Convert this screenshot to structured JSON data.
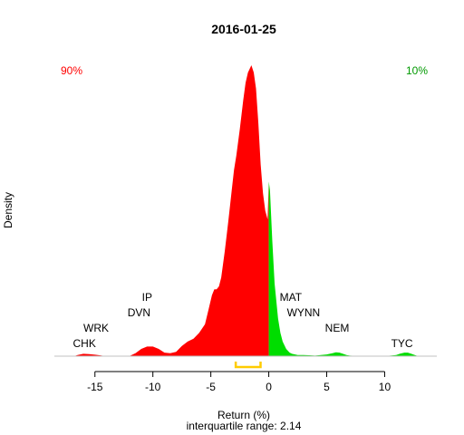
{
  "chart_data": {
    "type": "area",
    "title": "2016-01-25",
    "xlabel": "Return (%)",
    "ylabel": "Density",
    "subtitle": "interquartile range: 2.14",
    "xlim": [
      -18.5,
      14.5
    ],
    "ylim": [
      0,
      1
    ],
    "xticks": [
      -15,
      -10,
      -5,
      0,
      5,
      10
    ],
    "split_at": 0,
    "negative_share": "90%",
    "positive_share": "10%",
    "colors": {
      "negative": "#ff0000",
      "positive": "#00dd00",
      "iqr": "#ffcc00",
      "negative_text": "#ff0000",
      "positive_text": "#009900",
      "baseline": "#c0c0c0"
    },
    "density": {
      "x": [
        -16.8,
        -16.5,
        -16.0,
        -15.5,
        -15.0,
        -14.6,
        -14.2,
        -13.0,
        -12.0,
        -11.5,
        -11.0,
        -10.5,
        -10.0,
        -9.5,
        -9.0,
        -8.5,
        -8.0,
        -7.5,
        -7.0,
        -6.5,
        -6.0,
        -5.5,
        -5.2,
        -4.9,
        -4.7,
        -4.5,
        -4.3,
        -4.1,
        -3.8,
        -3.5,
        -3.2,
        -3.0,
        -2.8,
        -2.5,
        -2.2,
        -2.0,
        -1.8,
        -1.5,
        -1.3,
        -1.1,
        -0.9,
        -0.7,
        -0.5,
        -0.3,
        -0.1,
        0.0,
        0.1,
        0.3,
        0.5,
        0.8,
        1.0,
        1.2,
        1.5,
        1.8,
        2.0,
        2.5,
        3.0,
        3.5,
        4.0,
        4.5,
        5.0,
        5.5,
        5.8,
        6.1,
        6.4,
        6.7,
        7.0,
        8.0,
        9.0,
        10.0,
        11.0,
        11.3,
        11.7,
        12.0,
        12.3,
        12.6,
        12.9
      ],
      "y": [
        0.0,
        0.004,
        0.008,
        0.007,
        0.005,
        0.003,
        0.001,
        0.0,
        0.001,
        0.01,
        0.025,
        0.033,
        0.033,
        0.025,
        0.012,
        0.01,
        0.015,
        0.035,
        0.05,
        0.06,
        0.08,
        0.11,
        0.16,
        0.21,
        0.23,
        0.23,
        0.24,
        0.27,
        0.36,
        0.46,
        0.57,
        0.64,
        0.69,
        0.78,
        0.88,
        0.94,
        0.975,
        1.0,
        0.975,
        0.92,
        0.8,
        0.66,
        0.56,
        0.5,
        0.47,
        0.6,
        0.57,
        0.4,
        0.25,
        0.13,
        0.08,
        0.05,
        0.025,
        0.012,
        0.008,
        0.004,
        0.004,
        0.003,
        0.002,
        0.004,
        0.006,
        0.01,
        0.013,
        0.012,
        0.008,
        0.004,
        0.002,
        0.0,
        0.0,
        0.0,
        0.004,
        0.008,
        0.012,
        0.012,
        0.008,
        0.004,
        0.0
      ]
    },
    "annotations": [
      {
        "text": "CHK",
        "x": -15.9,
        "line": 0
      },
      {
        "text": "WRK",
        "x": -14.9,
        "line": 1
      },
      {
        "text": "DVN",
        "x": -11.2,
        "line": 2
      },
      {
        "text": "IP",
        "x": -10.5,
        "line": 3
      },
      {
        "text": "MAT",
        "x": 1.9,
        "line": 3
      },
      {
        "text": "WYNN",
        "x": 3.0,
        "line": 2
      },
      {
        "text": "NEM",
        "x": 5.9,
        "line": 1
      },
      {
        "text": "TYC",
        "x": 11.5,
        "line": 0
      }
    ],
    "iqr": [
      -2.85,
      -0.71
    ]
  }
}
